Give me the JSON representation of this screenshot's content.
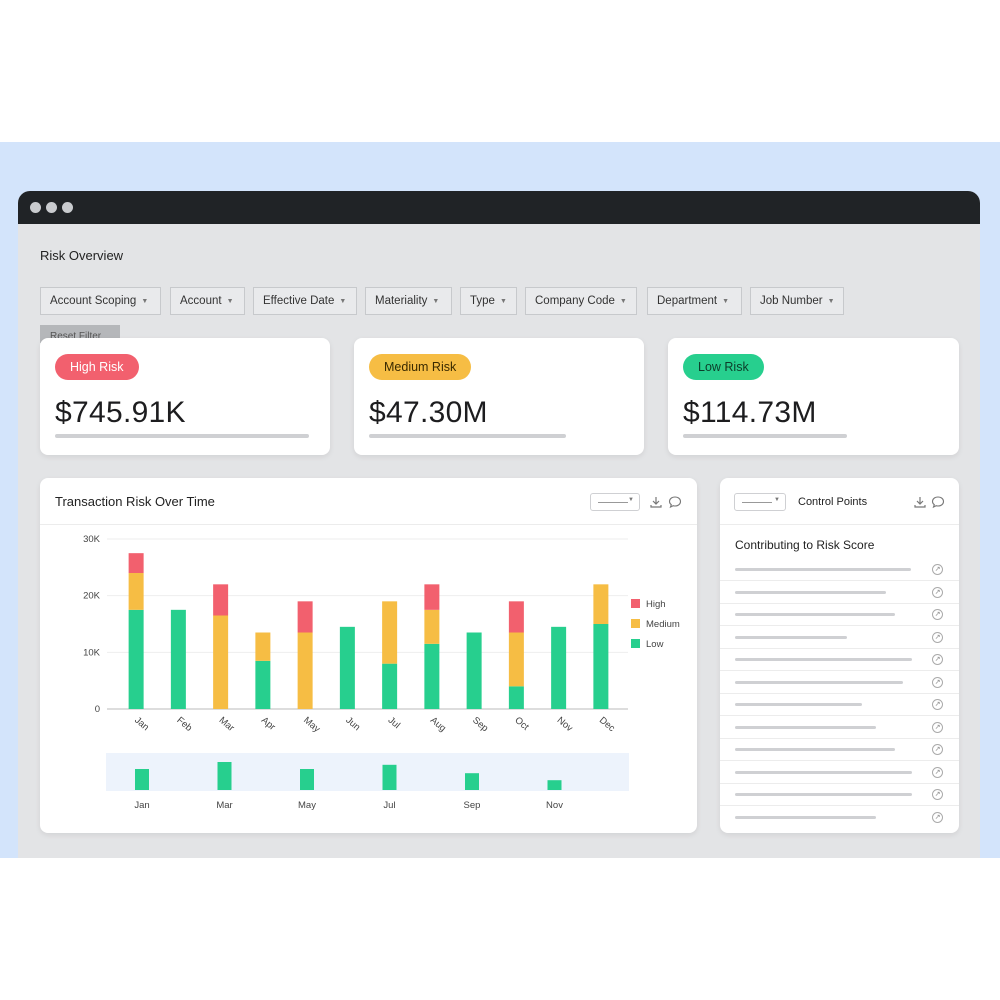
{
  "page": {
    "title": "Risk Overview",
    "reset_label": "Reset Filter"
  },
  "filters": [
    "Account Scoping",
    "Account",
    "Effective Date",
    "Materiality",
    "Type",
    "Company Code",
    "Department",
    "Job Number"
  ],
  "kpis": [
    {
      "label": "High Risk",
      "value": "$745.91K",
      "pill_bg": "#f2606e",
      "pill_fg": "#ffffff"
    },
    {
      "label": "Medium Risk",
      "value": "$47.30M",
      "pill_bg": "#f6bd44",
      "pill_fg": "#3a2a00"
    },
    {
      "label": "Low Risk",
      "value": "$114.73M",
      "pill_bg": "#27cf8e",
      "pill_fg": "#0d3d2a"
    }
  ],
  "chart_card": {
    "title": "Transaction Risk Over Time"
  },
  "control_points": {
    "title": "Control Points",
    "subtitle": "Contributing to Risk Score",
    "row_count": 12
  },
  "colors": {
    "high": "#f2606e",
    "medium": "#f6bd44",
    "low": "#27cf8e",
    "navigator_bg": "#edf3fc"
  },
  "chart_data": {
    "type": "bar",
    "stacked": true,
    "categories": [
      "Jan",
      "Feb",
      "Mar",
      "Apr",
      "May",
      "Jun",
      "Jul",
      "Aug",
      "Sep",
      "Oct",
      "Nov",
      "Dec"
    ],
    "series": [
      {
        "name": "Low",
        "values": [
          17500,
          17500,
          0,
          8500,
          0,
          14500,
          8000,
          11500,
          13500,
          4000,
          14500,
          15000
        ]
      },
      {
        "name": "Medium",
        "values": [
          6500,
          0,
          16500,
          5000,
          13500,
          0,
          11000,
          6000,
          0,
          9500,
          0,
          7000
        ]
      },
      {
        "name": "High",
        "values": [
          3500,
          0,
          5500,
          0,
          5500,
          0,
          0,
          4500,
          0,
          5500,
          0,
          0
        ]
      }
    ],
    "ylim": [
      0,
      30000
    ],
    "yticks": [
      "0",
      "10K",
      "20K",
      "30K"
    ],
    "legend": [
      "High",
      "Medium",
      "Low"
    ],
    "legend_position": "right",
    "grid": true,
    "navigator": {
      "categories": [
        "Jan",
        "Mar",
        "May",
        "Jul",
        "Sep",
        "Nov"
      ],
      "values": [
        0.75,
        1.0,
        0.75,
        0.9,
        0.6,
        0.35
      ]
    }
  }
}
